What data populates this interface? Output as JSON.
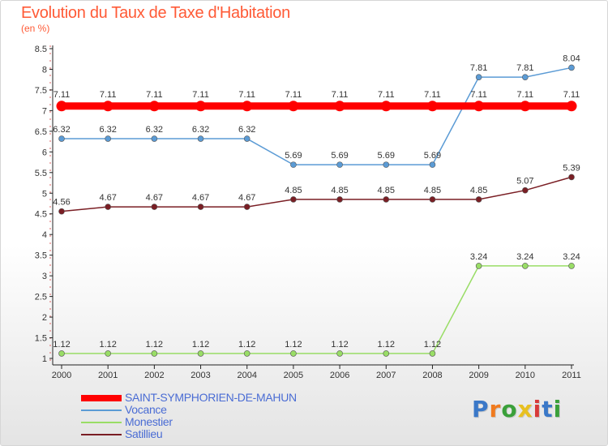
{
  "title": "Evolution du Taux de Taxe d'Habitation",
  "subtitle": "(en %)",
  "logo": {
    "text": "Proxiti",
    "letter_colors": [
      "#3a78c8",
      "#f07a1e",
      "#3aa03a",
      "#e8c020",
      "#d83a3a",
      "#3a78c8",
      "#3aa03a"
    ]
  },
  "chart_data": {
    "type": "line",
    "title": "Evolution du Taux de Taxe d'Habitation",
    "ylabel": "(en %)",
    "xlabel": "",
    "x": [
      "2000",
      "2001",
      "2002",
      "2003",
      "2004",
      "2005",
      "2006",
      "2007",
      "2008",
      "2009",
      "2010",
      "2011"
    ],
    "ylim": [
      1,
      8.5
    ],
    "yticks": [
      "1",
      "1.5",
      "2",
      "2.5",
      "3",
      "3.5",
      "4",
      "4.5",
      "5",
      "5.5",
      "6",
      "6.5",
      "7",
      "7.5",
      "8",
      "8.5"
    ],
    "grid": false,
    "legend_position": "bottom-left",
    "series": [
      {
        "name": "SAINT-SYMPHORIEN-DE-MAHUN",
        "color": "#ff0000",
        "values": [
          7.11,
          7.11,
          7.11,
          7.11,
          7.11,
          7.11,
          7.11,
          7.11,
          7.11,
          7.11,
          7.11,
          7.11
        ],
        "labels": [
          "7.11",
          "7.11",
          "7.11",
          "7.11",
          "7.11",
          "7.11",
          "7.11",
          "7.11",
          "7.11",
          "7.11",
          "7.11",
          "7.11"
        ]
      },
      {
        "name": "Vocance",
        "color": "#5b9bd5",
        "values": [
          6.32,
          6.32,
          6.32,
          6.32,
          6.32,
          5.69,
          5.69,
          5.69,
          5.69,
          7.81,
          7.81,
          8.04
        ],
        "labels": [
          "6.32",
          "6.32",
          "6.32",
          "6.32",
          "6.32",
          "5.69",
          "5.69",
          "5.69",
          "5.69",
          "7.81",
          "7.81",
          "8.04"
        ]
      },
      {
        "name": "Monestier",
        "color": "#99dd66",
        "values": [
          1.12,
          1.12,
          1.12,
          1.12,
          1.12,
          1.12,
          1.12,
          1.12,
          1.12,
          3.24,
          3.24,
          3.24
        ],
        "labels": [
          "1.12",
          "1.12",
          "1.12",
          "1.12",
          "1.12",
          "1.12",
          "1.12",
          "1.12",
          "1.12",
          "3.24",
          "3.24",
          "3.24"
        ]
      },
      {
        "name": "Satillieu",
        "color": "#7a1e24",
        "values": [
          4.56,
          4.67,
          4.67,
          4.67,
          4.67,
          4.85,
          4.85,
          4.85,
          4.85,
          4.85,
          5.07,
          5.39
        ],
        "labels": [
          "4.56",
          "4.67",
          "4.67",
          "4.67",
          "4.67",
          "4.85",
          "4.85",
          "4.85",
          "4.85",
          "4.85",
          "5.07",
          "5.39"
        ]
      }
    ]
  }
}
